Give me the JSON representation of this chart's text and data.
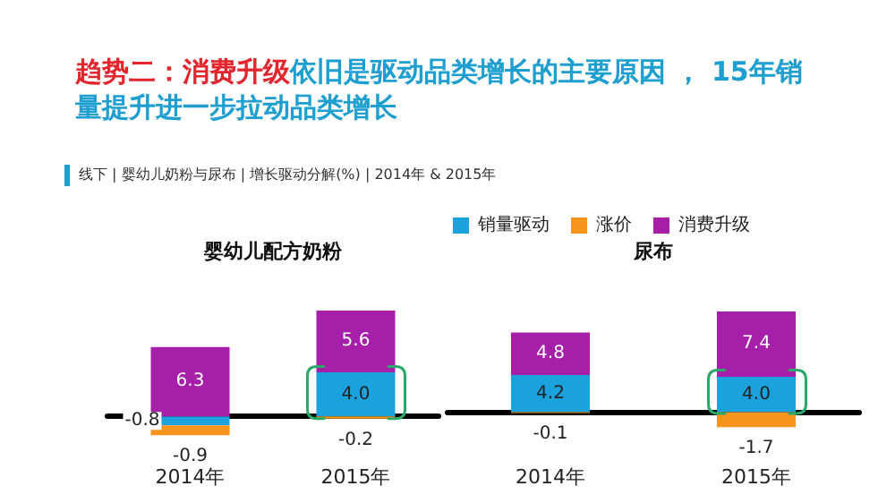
{
  "chart_data": [
    {
      "type": "bar",
      "title": "婴幼儿配方奶粉",
      "annotations": [
        "趋势二：消费升级",
        "依旧是驱动品类增长的主要原因 ， 15年销量提升进一步拉动品类增长",
        "线下 | 婴幼儿奶粉与尿布 | 增长驱动分解(%) | 2014年 & 2015年"
      ],
      "categories": [
        "2014年",
        "2015年"
      ],
      "stacked": true,
      "legend": false,
      "series": [
        {
          "color": "#1ba1dc",
          "values": [
            -0.8,
            4.0
          ],
          "value_labels": [
            "-0.8",
            "4.0"
          ]
        },
        {
          "color": "#f7941d",
          "values": [
            -0.9,
            -0.2
          ],
          "value_labels": [
            "-0.9",
            "-0.2"
          ]
        },
        {
          "color": "#a51fa8",
          "values": [
            6.3,
            5.6
          ],
          "value_labels": [
            "6.3",
            "5.6"
          ]
        }
      ]
    },
    {
      "type": "bar",
      "title": "尿布",
      "categories": [
        "2014年",
        "2015年"
      ],
      "stacked": true,
      "legend": "top left",
      "series": [
        {
          "name": "销量驱动",
          "color": "#1ba1dc",
          "values": [
            4.2,
            4.0
          ],
          "value_labels": [
            "4.2",
            "4.0"
          ]
        },
        {
          "name": "涨价",
          "color": "#f7941d",
          "values": [
            -0.1,
            -1.7
          ],
          "value_labels": [
            "-0.1",
            "-1.7"
          ]
        },
        {
          "name": "消费升级",
          "color": "#a51fa8",
          "values": [
            4.8,
            7.4
          ],
          "value_labels": [
            "4.8",
            "7.4"
          ]
        }
      ]
    }
  ]
}
